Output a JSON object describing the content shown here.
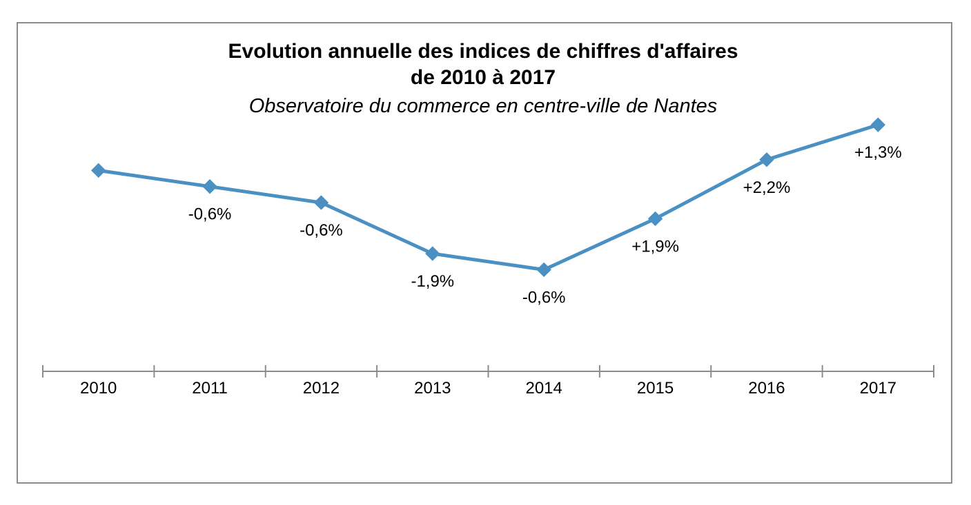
{
  "colors": {
    "series": "#4a90c2",
    "axis": "#8c8c8c",
    "frame": "#8c8c8c"
  },
  "chart_data": {
    "type": "line",
    "title_line1": "Evolution annuelle des indices de chiffres d'affaires",
    "title_line2": "de 2010 à 2017",
    "subtitle": "Observatoire du commerce en centre-ville de Nantes",
    "xlabel": "",
    "ylabel": "",
    "categories": [
      "2010",
      "2011",
      "2012",
      "2013",
      "2014",
      "2015",
      "2016",
      "2017"
    ],
    "series": [
      {
        "values": [
          100,
          99.4,
          98.8,
          96.9,
          96.3,
          98.2,
          100.4,
          101.7
        ],
        "data_labels": [
          "",
          "-0,6%",
          "-0,6%",
          "-1,9%",
          "-0,6%",
          "+1,9%",
          "+2,2%",
          "+1,3%"
        ],
        "marker": "diamond"
      }
    ],
    "ylim": [
      93,
      102.5
    ],
    "y_axis_visible": false,
    "grid": false,
    "legend": "none"
  }
}
